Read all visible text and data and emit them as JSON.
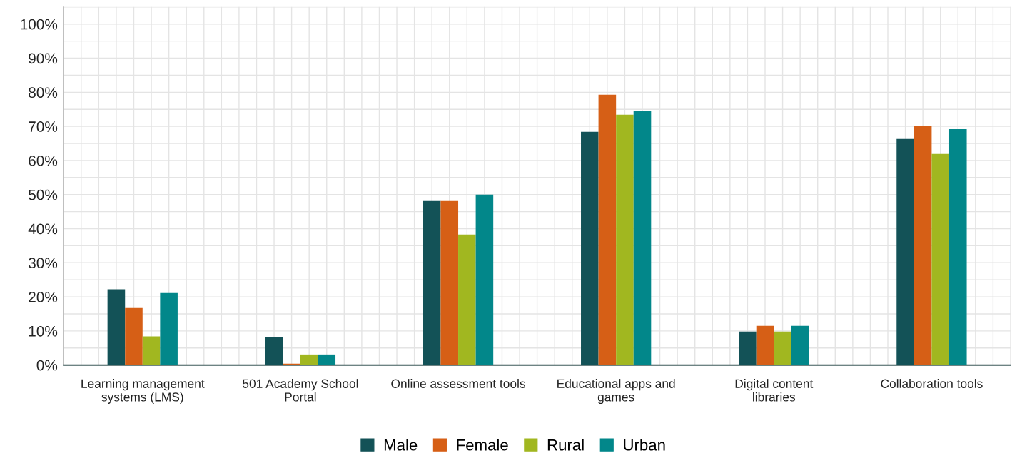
{
  "chart_data": {
    "type": "bar",
    "categories": [
      "Learning management systems (LMS)",
      "501 Academy School Portal",
      "Online assessment tools",
      "Educational apps and games",
      "Digital content libraries",
      "Collaboration tools"
    ],
    "series": [
      {
        "name": "Male",
        "color": "#135257",
        "values": [
          22.2,
          8.2,
          48.1,
          68.4,
          9.8,
          66.3
        ]
      },
      {
        "name": "Female",
        "color": "#d65f16",
        "values": [
          16.7,
          0.4,
          48.1,
          79.3,
          11.5,
          70.1
        ]
      },
      {
        "name": "Rural",
        "color": "#a1b720",
        "values": [
          8.4,
          3.1,
          38.3,
          73.4,
          9.8,
          61.9
        ]
      },
      {
        "name": "Urban",
        "color": "#02878a",
        "values": [
          21.1,
          3.1,
          50.0,
          74.5,
          11.5,
          69.2
        ]
      }
    ],
    "ylim": [
      0,
      105
    ],
    "yticks": [
      {
        "value": 0,
        "label": "0%"
      },
      {
        "value": 10,
        "label": "10%"
      },
      {
        "value": 20,
        "label": "20%"
      },
      {
        "value": 30,
        "label": "30%"
      },
      {
        "value": 40,
        "label": "40%"
      },
      {
        "value": 50,
        "label": "50%"
      },
      {
        "value": 60,
        "label": "60%"
      },
      {
        "value": 70,
        "label": "70%"
      },
      {
        "value": 80,
        "label": "80%"
      },
      {
        "value": 90,
        "label": "90%"
      },
      {
        "value": 100,
        "label": "100%"
      }
    ],
    "grid": true,
    "legend": "bottom"
  }
}
